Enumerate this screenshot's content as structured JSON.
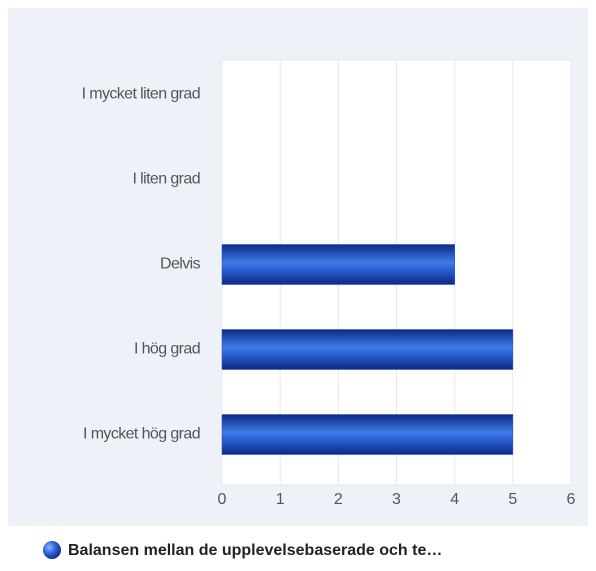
{
  "chart_data": {
    "type": "bar",
    "orientation": "horizontal",
    "categories": [
      "I mycket liten grad",
      "I liten grad",
      "Delvis",
      "I hög grad",
      "I mycket hög grad"
    ],
    "series": [
      {
        "name": "Balansen mellan de upplevelsebaserade och te…",
        "color": "#1f4fbf",
        "values": [
          0,
          0,
          4,
          5,
          5
        ]
      }
    ],
    "xlim": [
      0,
      6
    ],
    "xticks": [
      0,
      1,
      2,
      3,
      4,
      5,
      6
    ],
    "grid": true
  }
}
